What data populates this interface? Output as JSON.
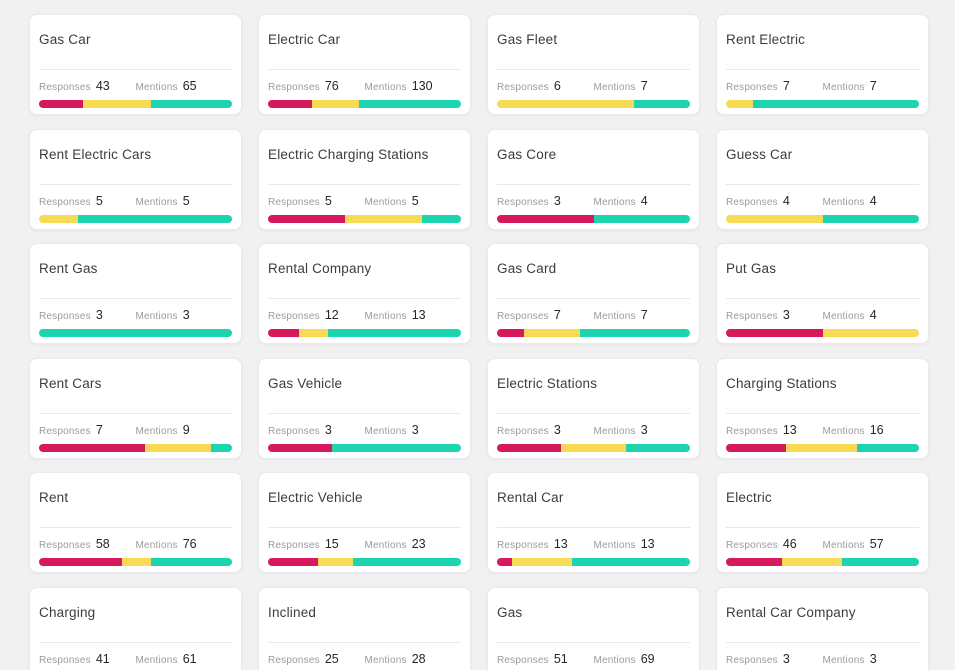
{
  "page": {
    "background": "#f1f1f2"
  },
  "colors": {
    "negative": "#d6195c",
    "neutral": "#f8db55",
    "positive": "#1cd4b0"
  },
  "labels": {
    "responses": "Responses",
    "mentions": "Mentions"
  },
  "cards": [
    {
      "title": "Gas Car",
      "responses": "43",
      "mentions": "65",
      "segments": [
        23,
        35,
        42
      ]
    },
    {
      "title": "Electric Car",
      "responses": "76",
      "mentions": "130",
      "segments": [
        23,
        24,
        53
      ]
    },
    {
      "title": "Gas Fleet",
      "responses": "6",
      "mentions": "7",
      "segments": [
        0,
        71,
        29
      ]
    },
    {
      "title": "Rent Electric",
      "responses": "7",
      "mentions": "7",
      "segments": [
        0,
        14,
        86
      ]
    },
    {
      "title": "Rent Electric Cars",
      "responses": "5",
      "mentions": "5",
      "segments": [
        0,
        20,
        80
      ]
    },
    {
      "title": "Electric Charging Stations",
      "responses": "5",
      "mentions": "5",
      "segments": [
        40,
        40,
        20
      ]
    },
    {
      "title": "Gas Core",
      "responses": "3",
      "mentions": "4",
      "segments": [
        50,
        0,
        50
      ]
    },
    {
      "title": "Guess Car",
      "responses": "4",
      "mentions": "4",
      "segments": [
        0,
        50,
        50
      ]
    },
    {
      "title": "Rent Gas",
      "responses": "3",
      "mentions": "3",
      "segments": [
        0,
        0,
        100
      ]
    },
    {
      "title": "Rental Company",
      "responses": "12",
      "mentions": "13",
      "segments": [
        16,
        15,
        69
      ]
    },
    {
      "title": "Gas Card",
      "responses": "7",
      "mentions": "7",
      "segments": [
        14,
        29,
        57
      ]
    },
    {
      "title": "Put Gas",
      "responses": "3",
      "mentions": "4",
      "segments": [
        50,
        50,
        0
      ]
    },
    {
      "title": "Rent Cars",
      "responses": "7",
      "mentions": "9",
      "segments": [
        55,
        34,
        11
      ]
    },
    {
      "title": "Gas Vehicle",
      "responses": "3",
      "mentions": "3",
      "segments": [
        33,
        0,
        67
      ]
    },
    {
      "title": "Electric Stations",
      "responses": "3",
      "mentions": "3",
      "segments": [
        33,
        34,
        33
      ]
    },
    {
      "title": "Charging Stations",
      "responses": "13",
      "mentions": "16",
      "segments": [
        31,
        37,
        32
      ]
    },
    {
      "title": "Rent",
      "responses": "58",
      "mentions": "76",
      "segments": [
        43,
        15,
        42
      ]
    },
    {
      "title": "Electric Vehicle",
      "responses": "15",
      "mentions": "23",
      "segments": [
        26,
        18,
        56
      ]
    },
    {
      "title": "Rental Car",
      "responses": "13",
      "mentions": "13",
      "segments": [
        8,
        31,
        61
      ]
    },
    {
      "title": "Electric",
      "responses": "46",
      "mentions": "57",
      "segments": [
        29,
        31,
        40
      ]
    },
    {
      "title": "Charging",
      "responses": "41",
      "mentions": "61",
      "segments": []
    },
    {
      "title": "Inclined",
      "responses": "25",
      "mentions": "28",
      "segments": []
    },
    {
      "title": "Gas",
      "responses": "51",
      "mentions": "69",
      "segments": []
    },
    {
      "title": "Rental Car Company",
      "responses": "3",
      "mentions": "3",
      "segments": []
    }
  ]
}
